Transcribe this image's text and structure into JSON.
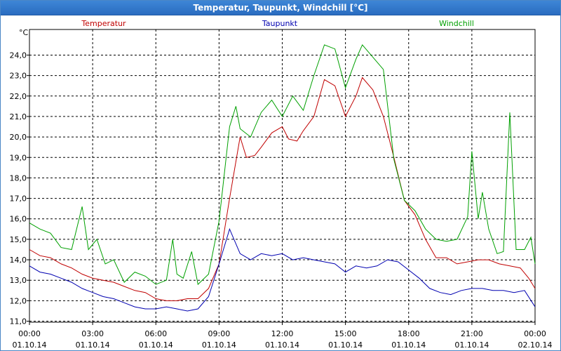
{
  "window": {
    "title": "Temperatur, Taupunkt, Windchill [°C]"
  },
  "chart_data": {
    "type": "line",
    "title": "Temperatur, Taupunkt, Windchill [°C]",
    "ylabel": "°C",
    "xlabel": "",
    "ylim": [
      10.95,
      25.25
    ],
    "grid": true,
    "y_ticks": [
      "11,0",
      "12,0",
      "13,0",
      "14,0",
      "15,0",
      "16,0",
      "17,0",
      "18,0",
      "19,0",
      "20,0",
      "21,0",
      "22,0",
      "23,0",
      "24,0"
    ],
    "x_ticks": [
      {
        "time": "00:00",
        "date": "01.10.14"
      },
      {
        "time": "03:00",
        "date": "01.10.14"
      },
      {
        "time": "06:00",
        "date": "01.10.14"
      },
      {
        "time": "09:00",
        "date": "01.10.14"
      },
      {
        "time": "12:00",
        "date": "01.10.14"
      },
      {
        "time": "15:00",
        "date": "01.10.14"
      },
      {
        "time": "18:00",
        "date": "01.10.14"
      },
      {
        "time": "21:00",
        "date": "01.10.14"
      },
      {
        "time": "00:00",
        "date": "02.10.14"
      }
    ],
    "x_unit": "hours since 01.10.14 00:00",
    "xlim": [
      0,
      24
    ],
    "series": [
      {
        "name": "Temperatur",
        "color": "#c00000",
        "points": [
          [
            0,
            14.5
          ],
          [
            0.5,
            14.2
          ],
          [
            1,
            14.1
          ],
          [
            1.5,
            13.8
          ],
          [
            2,
            13.6
          ],
          [
            2.5,
            13.3
          ],
          [
            3,
            13.1
          ],
          [
            3.5,
            13.0
          ],
          [
            4,
            12.9
          ],
          [
            4.5,
            12.7
          ],
          [
            5,
            12.5
          ],
          [
            5.5,
            12.4
          ],
          [
            6,
            12.1
          ],
          [
            6.5,
            12.0
          ],
          [
            7,
            12.0
          ],
          [
            7.5,
            12.1
          ],
          [
            8,
            12.1
          ],
          [
            8.5,
            12.6
          ],
          [
            9,
            13.8
          ],
          [
            9.5,
            17.0
          ],
          [
            10,
            20.0
          ],
          [
            10.3,
            19.0
          ],
          [
            10.7,
            19.1
          ],
          [
            11,
            19.5
          ],
          [
            11.5,
            20.2
          ],
          [
            12,
            20.5
          ],
          [
            12.3,
            19.9
          ],
          [
            12.7,
            19.8
          ],
          [
            13,
            20.3
          ],
          [
            13.5,
            21.0
          ],
          [
            14,
            22.8
          ],
          [
            14.5,
            22.5
          ],
          [
            15,
            21.0
          ],
          [
            15.5,
            22.0
          ],
          [
            15.8,
            22.9
          ],
          [
            16.3,
            22.3
          ],
          [
            16.8,
            21.0
          ],
          [
            17.3,
            19.0
          ],
          [
            17.8,
            16.9
          ],
          [
            18.3,
            16.2
          ],
          [
            18.8,
            15.0
          ],
          [
            19.3,
            14.1
          ],
          [
            19.8,
            14.1
          ],
          [
            20.3,
            13.8
          ],
          [
            20.8,
            13.9
          ],
          [
            21.3,
            14.0
          ],
          [
            21.8,
            14.0
          ],
          [
            22.3,
            13.8
          ],
          [
            22.8,
            13.7
          ],
          [
            23.3,
            13.6
          ],
          [
            23.7,
            13.1
          ],
          [
            24,
            12.6
          ]
        ]
      },
      {
        "name": "Taupunkt",
        "color": "#0000b0",
        "points": [
          [
            0,
            13.7
          ],
          [
            0.5,
            13.4
          ],
          [
            1,
            13.3
          ],
          [
            1.5,
            13.1
          ],
          [
            2,
            12.9
          ],
          [
            2.5,
            12.6
          ],
          [
            3,
            12.4
          ],
          [
            3.5,
            12.2
          ],
          [
            4,
            12.1
          ],
          [
            4.5,
            11.9
          ],
          [
            5,
            11.7
          ],
          [
            5.5,
            11.6
          ],
          [
            6,
            11.6
          ],
          [
            6.5,
            11.7
          ],
          [
            7,
            11.6
          ],
          [
            7.5,
            11.5
          ],
          [
            8,
            11.6
          ],
          [
            8.5,
            12.2
          ],
          [
            9,
            13.8
          ],
          [
            9.5,
            15.5
          ],
          [
            10,
            14.3
          ],
          [
            10.5,
            14.0
          ],
          [
            11,
            14.3
          ],
          [
            11.5,
            14.2
          ],
          [
            12,
            14.3
          ],
          [
            12.5,
            14.0
          ],
          [
            13,
            14.1
          ],
          [
            13.5,
            14.0
          ],
          [
            14,
            13.9
          ],
          [
            14.5,
            13.8
          ],
          [
            15,
            13.4
          ],
          [
            15.5,
            13.7
          ],
          [
            16,
            13.6
          ],
          [
            16.5,
            13.7
          ],
          [
            17,
            14.0
          ],
          [
            17.5,
            13.9
          ],
          [
            18,
            13.5
          ],
          [
            18.5,
            13.1
          ],
          [
            19,
            12.6
          ],
          [
            19.5,
            12.4
          ],
          [
            20,
            12.3
          ],
          [
            20.5,
            12.5
          ],
          [
            21,
            12.6
          ],
          [
            21.5,
            12.6
          ],
          [
            22,
            12.5
          ],
          [
            22.5,
            12.5
          ],
          [
            23,
            12.4
          ],
          [
            23.5,
            12.5
          ],
          [
            24,
            11.7
          ]
        ]
      },
      {
        "name": "Windchill",
        "color": "#00a000",
        "points": [
          [
            0,
            15.8
          ],
          [
            0.5,
            15.5
          ],
          [
            1,
            15.3
          ],
          [
            1.5,
            14.6
          ],
          [
            2,
            14.5
          ],
          [
            2.5,
            16.6
          ],
          [
            2.8,
            14.5
          ],
          [
            3.2,
            15.0
          ],
          [
            3.6,
            13.8
          ],
          [
            4,
            14.0
          ],
          [
            4.5,
            12.9
          ],
          [
            5,
            13.4
          ],
          [
            5.5,
            13.2
          ],
          [
            6,
            12.8
          ],
          [
            6.5,
            13.0
          ],
          [
            6.8,
            15.0
          ],
          [
            7,
            13.3
          ],
          [
            7.3,
            13.1
          ],
          [
            7.7,
            14.4
          ],
          [
            8,
            12.8
          ],
          [
            8.5,
            13.3
          ],
          [
            9,
            15.9
          ],
          [
            9.5,
            20.5
          ],
          [
            9.8,
            21.5
          ],
          [
            10,
            20.4
          ],
          [
            10.5,
            20.0
          ],
          [
            11,
            21.2
          ],
          [
            11.5,
            21.8
          ],
          [
            12,
            21.0
          ],
          [
            12.5,
            22.0
          ],
          [
            13,
            21.3
          ],
          [
            13.5,
            23.0
          ],
          [
            14,
            24.5
          ],
          [
            14.5,
            24.3
          ],
          [
            15,
            22.4
          ],
          [
            15.5,
            23.8
          ],
          [
            15.8,
            24.5
          ],
          [
            16.3,
            23.9
          ],
          [
            16.8,
            23.3
          ],
          [
            17.3,
            18.9
          ],
          [
            17.8,
            16.9
          ],
          [
            18.3,
            16.4
          ],
          [
            18.8,
            15.5
          ],
          [
            19.3,
            15.0
          ],
          [
            19.8,
            14.9
          ],
          [
            20.3,
            15.0
          ],
          [
            20.8,
            16.1
          ],
          [
            21,
            19.3
          ],
          [
            21.3,
            16.0
          ],
          [
            21.5,
            17.3
          ],
          [
            21.8,
            15.5
          ],
          [
            22.2,
            14.3
          ],
          [
            22.5,
            14.4
          ],
          [
            22.8,
            21.2
          ],
          [
            23.1,
            14.5
          ],
          [
            23.5,
            14.5
          ],
          [
            23.8,
            15.1
          ],
          [
            24,
            13.8
          ]
        ]
      }
    ]
  }
}
